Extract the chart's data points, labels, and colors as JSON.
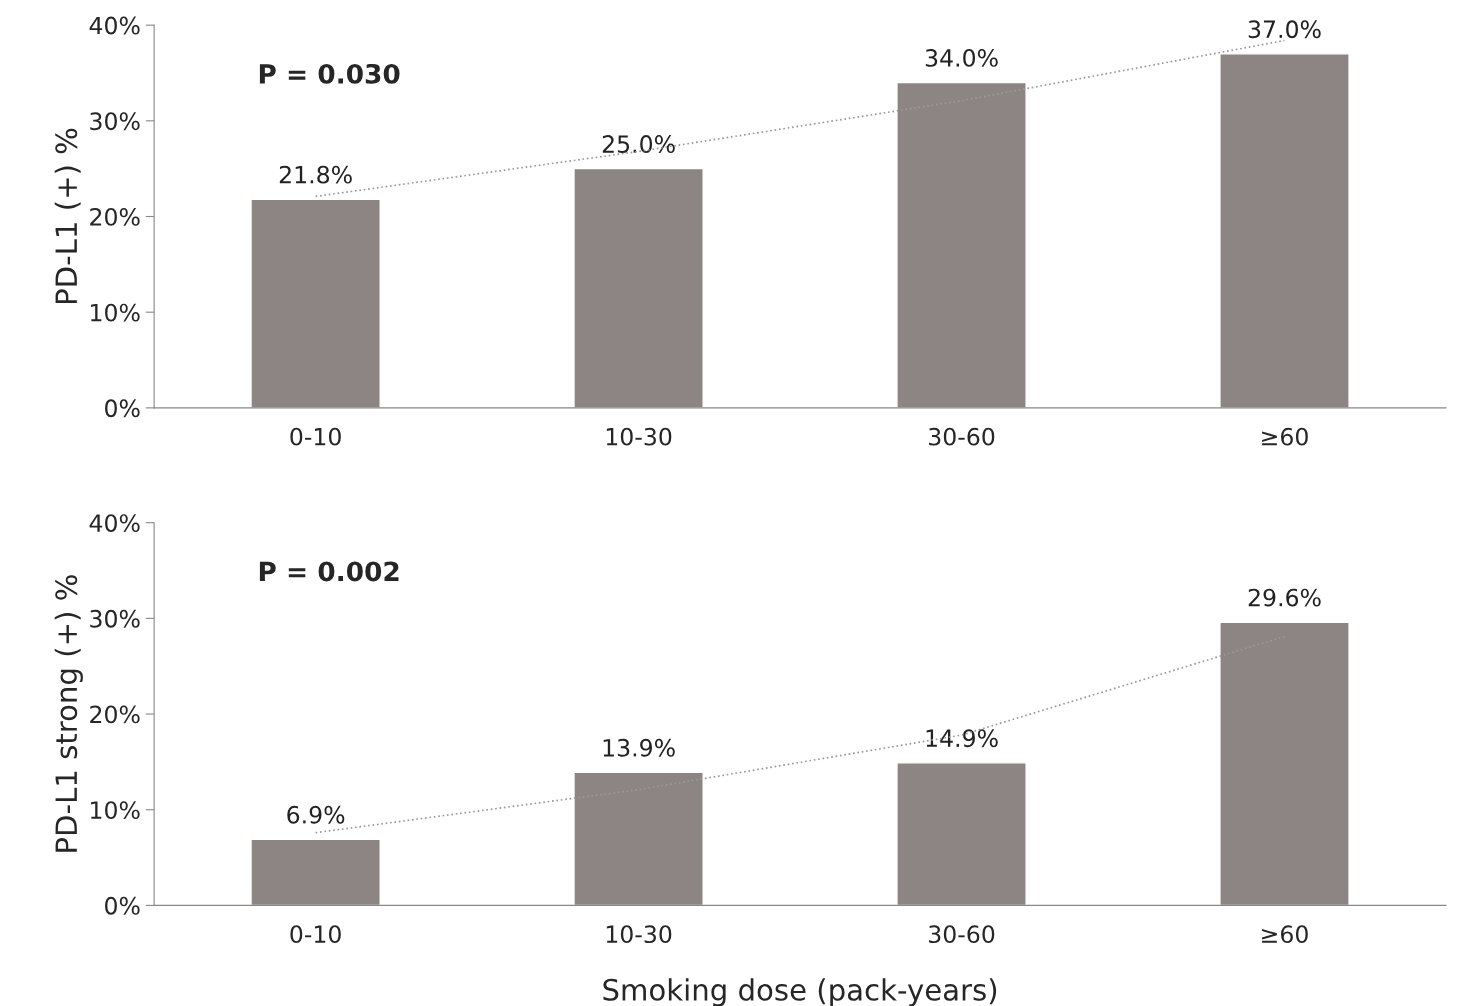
{
  "chart_data": [
    {
      "type": "bar",
      "ylabel": "PD-L1 (+) %",
      "categories": [
        "0-10",
        "10-30",
        "30-60",
        "≥60"
      ],
      "series": [
        {
          "color": "#8c8583",
          "values": [
            21.8,
            25.0,
            34.0,
            37.0
          ],
          "value_labels": [
            "21.8%",
            "25.0%",
            "34.0%",
            "37.0%"
          ]
        },
        {
          "type": "line",
          "color": "#9a9a9a",
          "line_style": "dotted",
          "x": [
            "0-10",
            "10-30",
            "30-60",
            "≥60"
          ],
          "values": [
            22.1,
            26.8,
            32.1,
            38.4
          ]
        }
      ],
      "ylim": [
        0,
        40
      ],
      "yticks": [
        {
          "value": 0,
          "label": "0%"
        },
        {
          "value": 10,
          "label": "10%"
        },
        {
          "value": 20,
          "label": "20%"
        },
        {
          "value": 30,
          "label": "30%"
        },
        {
          "value": 40,
          "label": "40%"
        }
      ],
      "annotations": [
        "P = 0.030"
      ],
      "grid": false,
      "legend": false
    },
    {
      "type": "bar",
      "ylabel": "PD-L1 strong (+) %",
      "xlabel": "Smoking dose (pack-years)",
      "categories": [
        "0-10",
        "10-30",
        "30-60",
        "≥60"
      ],
      "series": [
        {
          "color": "#8c8583",
          "values": [
            6.9,
            13.9,
            14.9,
            29.6
          ],
          "value_labels": [
            "6.9%",
            "13.9%",
            "14.9%",
            "29.6%"
          ]
        },
        {
          "type": "line",
          "color": "#9a9a9a",
          "line_style": "dotted",
          "x": [
            "0-10",
            "10-30",
            "30-60",
            "≥60"
          ],
          "values": [
            7.6,
            12.1,
            17.8,
            28.1
          ]
        }
      ],
      "ylim": [
        0,
        40
      ],
      "yticks": [
        {
          "value": 0,
          "label": "0%"
        },
        {
          "value": 10,
          "label": "10%"
        },
        {
          "value": 20,
          "label": "20%"
        },
        {
          "value": 30,
          "label": "30%"
        },
        {
          "value": 40,
          "label": "40%"
        }
      ],
      "annotations": [
        "P = 0.002"
      ],
      "grid": false,
      "legend": false
    }
  ]
}
